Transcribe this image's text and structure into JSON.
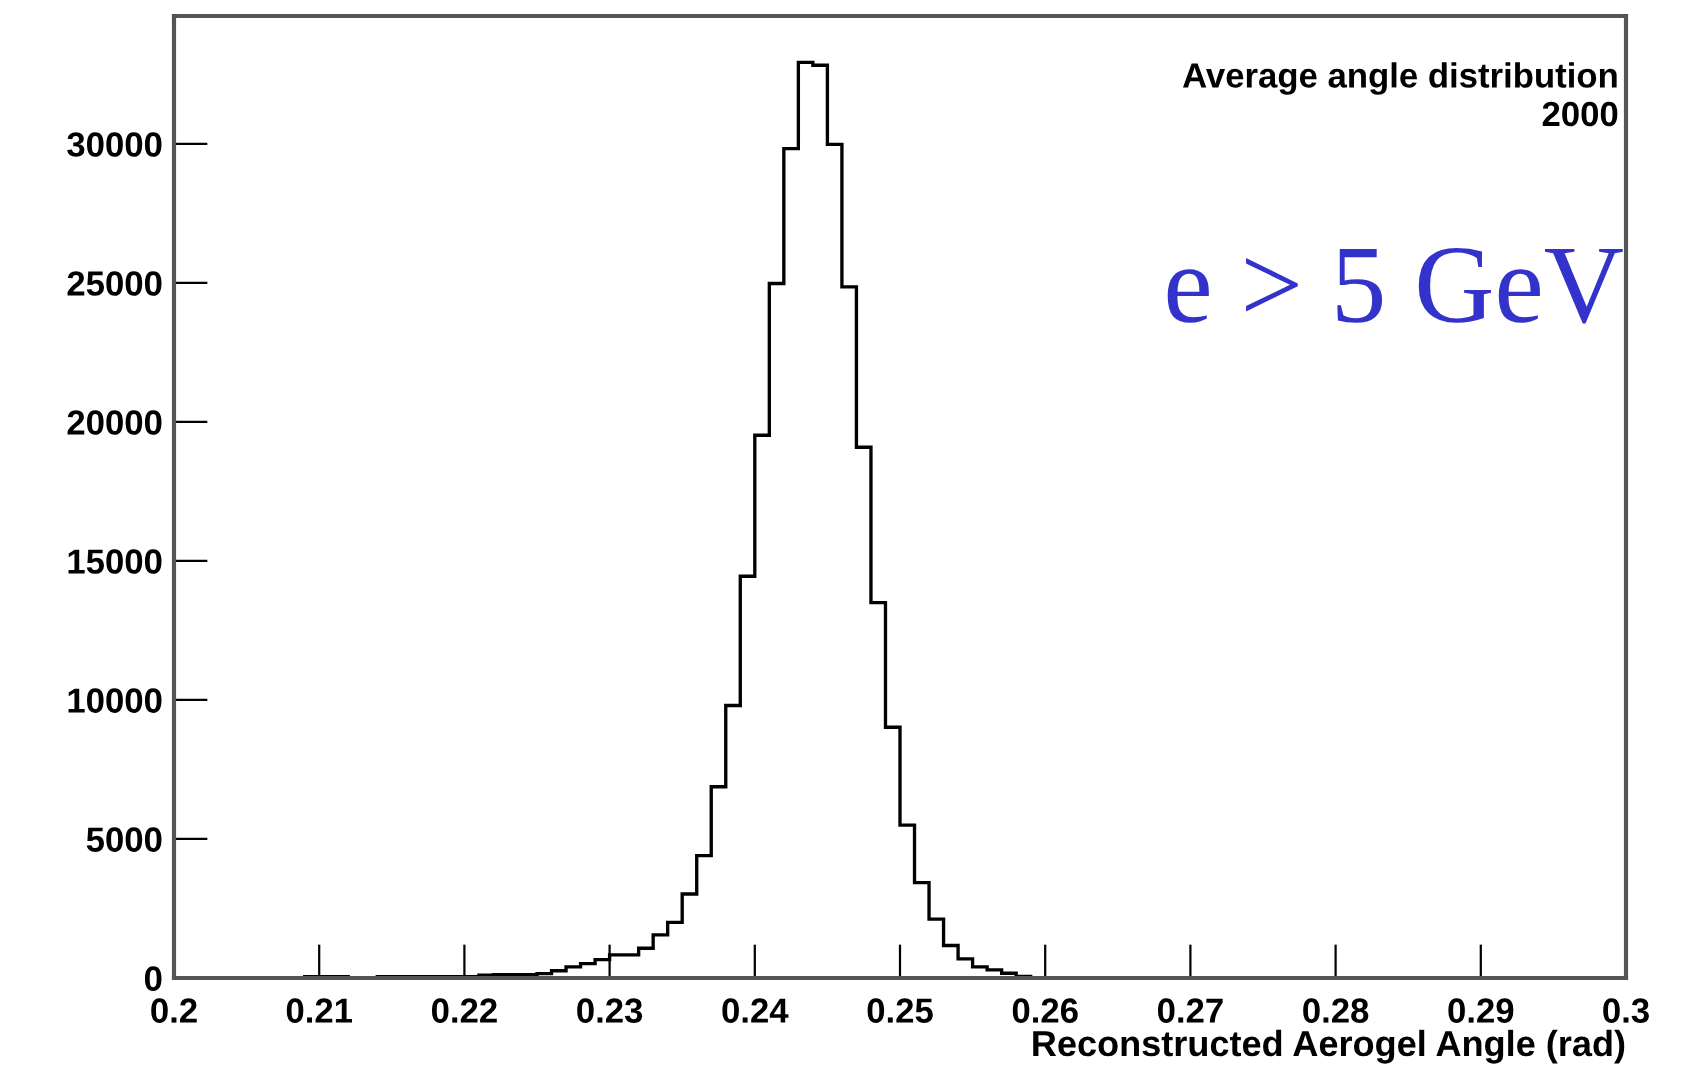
{
  "chart_data": {
    "type": "histogram",
    "xlabel": "Reconstructed Aerogel Angle (rad)",
    "annotations": [
      "Average angle distribution",
      "2000",
      "e > 5 GeV"
    ],
    "bins": [
      0.2,
      0.201,
      0.202,
      0.203,
      0.204,
      0.205,
      0.206,
      0.207,
      0.208,
      0.209,
      0.21,
      0.211,
      0.212,
      0.213,
      0.214,
      0.215,
      0.216,
      0.217,
      0.218,
      0.219,
      0.22,
      0.221,
      0.222,
      0.223,
      0.224,
      0.225,
      0.226,
      0.227,
      0.228,
      0.229,
      0.23,
      0.231,
      0.232,
      0.233,
      0.234,
      0.235,
      0.236,
      0.237,
      0.238,
      0.239,
      0.24,
      0.241,
      0.242,
      0.243,
      0.244,
      0.245,
      0.246,
      0.247,
      0.248,
      0.249,
      0.25,
      0.251,
      0.252,
      0.253,
      0.254,
      0.255,
      0.256,
      0.257,
      0.258,
      0.259,
      0.26,
      0.261,
      0.262,
      0.263,
      0.264,
      0.265,
      0.266,
      0.267,
      0.268,
      0.269,
      0.27,
      0.271,
      0.272,
      0.273,
      0.274,
      0.275,
      0.276,
      0.277,
      0.278,
      0.279,
      0.28,
      0.281,
      0.282,
      0.283,
      0.284,
      0.285,
      0.286,
      0.287,
      0.288,
      0.289,
      0.29,
      0.291,
      0.292,
      0.293,
      0.294,
      0.295,
      0.296,
      0.297,
      0.298,
      0.299,
      0.3
    ],
    "values": [
      0,
      0,
      0,
      0,
      0,
      0,
      0,
      0,
      0,
      50,
      50,
      50,
      0,
      0,
      50,
      50,
      50,
      50,
      50,
      50,
      60,
      100,
      120,
      120,
      120,
      160,
      260,
      400,
      520,
      660,
      830,
      830,
      1070,
      1550,
      2000,
      3020,
      4400,
      6880,
      9800,
      14450,
      19520,
      24980,
      29830,
      32930,
      32830,
      29980,
      24860,
      19090,
      13500,
      9020,
      5500,
      3430,
      2120,
      1170,
      690,
      400,
      290,
      170,
      60,
      0,
      0,
      0,
      0,
      0,
      0,
      0,
      0,
      0,
      0,
      0,
      0,
      0,
      0,
      0,
      0,
      0,
      0,
      0,
      0,
      0,
      0,
      0,
      0,
      0,
      0,
      0,
      0,
      0,
      0,
      0,
      0,
      0,
      0,
      0,
      0,
      0,
      0,
      0,
      0,
      0
    ],
    "color": "#000000",
    "xlim": [
      0.2,
      0.3
    ],
    "ylim": [
      0,
      34600
    ],
    "xticks": [
      0.2,
      0.21,
      0.22,
      0.23,
      0.24,
      0.25,
      0.26,
      0.27,
      0.28,
      0.29,
      0.3
    ],
    "yticks": [
      0,
      5000,
      10000,
      15000,
      20000,
      25000,
      30000
    ],
    "grid": false,
    "legend": false
  }
}
